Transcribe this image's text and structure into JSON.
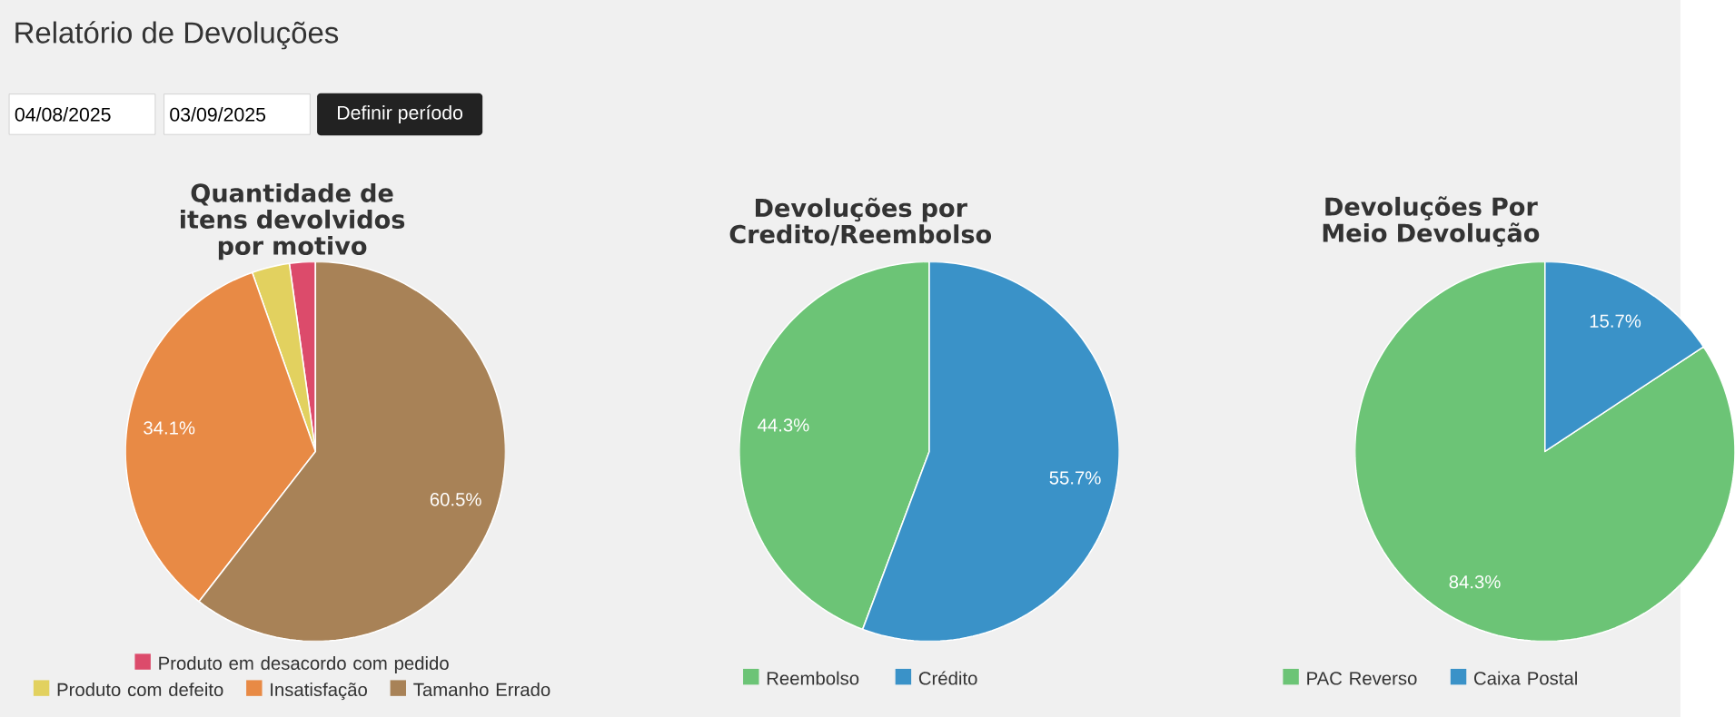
{
  "chart_data": [
    {
      "type": "other",
      "title": "Relatório de Devoluções",
      "annotations": [
        "04/08/2025",
        "03/09/2025",
        "Definir período"
      ]
    },
    {
      "type": "pie",
      "title": "Quantidade de itens devolvidos por motivo",
      "categories": [
        "Produto em desacordo com pedido",
        "Produto com defeito",
        "Insatisfação",
        "Tamanho Errado"
      ],
      "values": [
        2.2,
        3.2,
        34.1,
        60.5
      ],
      "colors": [
        "#dc4b6b",
        "#e2d15f",
        "#e88a45",
        "#a88257"
      ],
      "value_labels": [
        null,
        null,
        "34.1%",
        "60.5%"
      ],
      "legend": "bottom"
    },
    {
      "type": "pie",
      "title": "Devoluções por Credito/Reembolso",
      "categories": [
        "Reembolso",
        "Crédito"
      ],
      "values": [
        44.3,
        55.7
      ],
      "colors": [
        "#6cc476",
        "#3a92c8"
      ],
      "value_labels": [
        "44.3%",
        "55.7%"
      ],
      "legend": "bottom"
    },
    {
      "type": "pie",
      "title": "Devoluções Por Meio Devolução",
      "categories": [
        "PAC Reverso",
        "Caixa Postal"
      ],
      "values": [
        84.3,
        15.7
      ],
      "colors": [
        "#6cc476",
        "#3a92c8"
      ],
      "value_labels": [
        "84.3%",
        "15.7%"
      ],
      "legend": "bottom"
    }
  ]
}
